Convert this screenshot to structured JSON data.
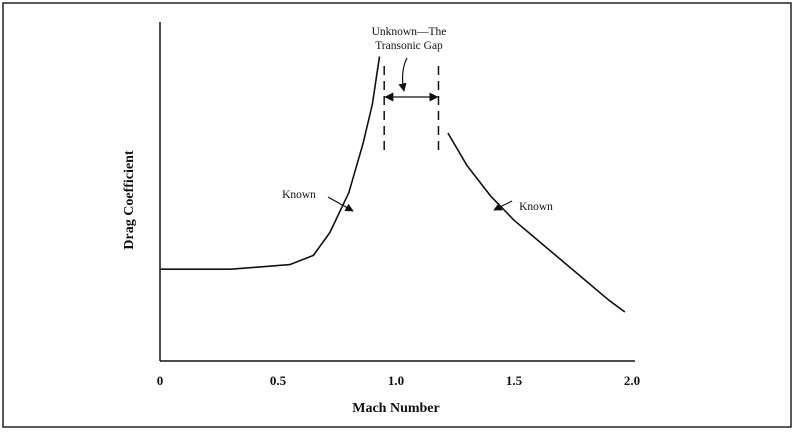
{
  "chart_data": {
    "type": "line",
    "xlabel": "Mach Number",
    "ylabel": "Drag Coefficient",
    "x_ticks": [
      "0",
      "0.5",
      "1.0",
      "1.5",
      "2.0"
    ],
    "xlim": [
      0,
      2.0
    ],
    "ylim": [
      0,
      1
    ],
    "grid": false,
    "series": [
      {
        "name": "Known",
        "x": [
          0,
          0.3,
          0.55,
          0.65,
          0.72,
          0.8,
          0.86,
          0.9,
          0.93
        ],
        "y": [
          0.3,
          0.3,
          0.315,
          0.345,
          0.42,
          0.55,
          0.71,
          0.84,
          0.995
        ]
      },
      {
        "name": "Known",
        "x": [
          1.22,
          1.3,
          1.4,
          1.5,
          1.6,
          1.7,
          1.8,
          1.9,
          1.97
        ],
        "y": [
          0.745,
          0.64,
          0.54,
          0.46,
          0.395,
          0.33,
          0.265,
          0.2,
          0.16
        ]
      }
    ],
    "gap": {
      "x_start": 0.95,
      "x_end": 1.18
    },
    "annotations": [
      {
        "text": "Known",
        "target_series": 0
      },
      {
        "text": "Known",
        "target_series": 1
      },
      {
        "lines": [
          "Unknown—The",
          "Transonic Gap"
        ]
      }
    ],
    "border": true
  }
}
